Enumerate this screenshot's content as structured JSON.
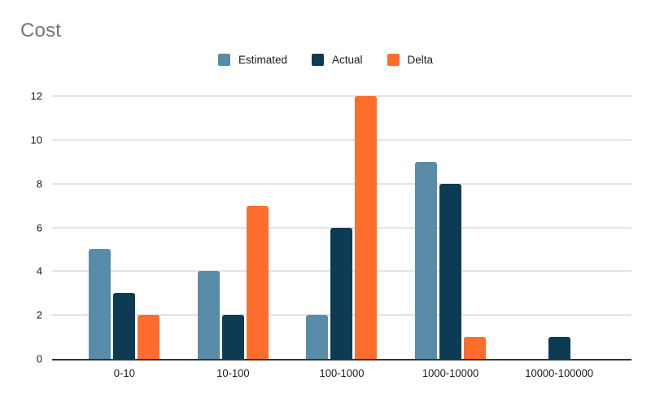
{
  "chart": {
    "colors": {
      "background": "#ffffff",
      "title_text": "#757575",
      "axis_text": "#1a1a1a",
      "gridline": "#e3e3e3",
      "baseline": "#333333"
    }
  },
  "chart_data": {
    "type": "bar",
    "title": "Cost",
    "categories": [
      "0-10",
      "10-100",
      "100-1000",
      "1000-10000",
      "10000-100000"
    ],
    "series": [
      {
        "name": "Estimated",
        "color": "#588ca8",
        "values": [
          5,
          4,
          2,
          9,
          0
        ]
      },
      {
        "name": "Actual",
        "color": "#0d3b54",
        "values": [
          3,
          2,
          6,
          8,
          1
        ]
      },
      {
        "name": "Delta",
        "color": "#ff6d2d",
        "values": [
          2,
          7,
          12,
          1,
          0
        ]
      }
    ],
    "xlabel": "",
    "ylabel": "",
    "ylim": [
      0,
      12
    ],
    "ytick_step": 2,
    "grid": true,
    "legend_position": "top"
  }
}
